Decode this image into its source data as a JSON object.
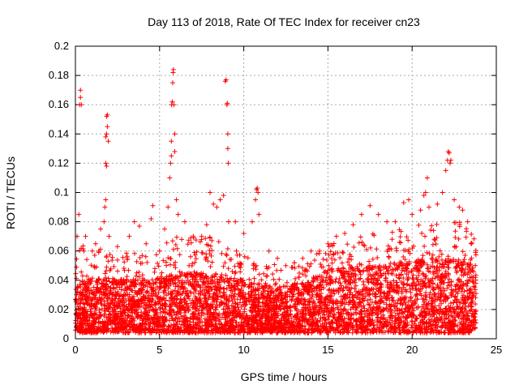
{
  "chart_data": {
    "type": "scatter",
    "title": "Day 113 of 2018, Rate Of TEC Index for receiver cn23",
    "xlabel": "GPS time / hours",
    "ylabel": "ROTI / TECUs",
    "xlim": [
      0,
      25
    ],
    "ylim": [
      0,
      0.2
    ],
    "xticks": [
      "0",
      "5",
      "10",
      "15",
      "20",
      "25"
    ],
    "yticks": [
      "0",
      "0.02",
      "0.04",
      "0.06",
      "0.08",
      "0.1",
      "0.12",
      "0.14",
      "0.16",
      "0.18",
      "0.2"
    ],
    "grid": true,
    "marker": "+",
    "color": "#ff0000",
    "series": [
      {
        "points": [
          [
            0.1,
            0.07
          ],
          [
            0.2,
            0.085
          ],
          [
            0.25,
            0.16
          ],
          [
            0.3,
            0.17
          ],
          [
            0.3,
            0.165
          ],
          [
            0.35,
            0.16
          ],
          [
            0.5,
            0.06
          ],
          [
            0.6,
            0.07
          ],
          [
            1.0,
            0.06
          ],
          [
            1.2,
            0.065
          ],
          [
            1.4,
            0.06
          ],
          [
            1.5,
            0.075
          ],
          [
            1.7,
            0.08
          ],
          [
            1.75,
            0.09
          ],
          [
            1.8,
            0.095
          ],
          [
            1.8,
            0.12
          ],
          [
            1.85,
            0.118
          ],
          [
            1.8,
            0.138
          ],
          [
            1.85,
            0.14
          ],
          [
            1.9,
            0.145
          ],
          [
            1.85,
            0.152
          ],
          [
            1.9,
            0.153
          ],
          [
            1.95,
            0.135
          ],
          [
            2.0,
            0.07
          ],
          [
            2.5,
            0.063
          ],
          [
            3.2,
            0.07
          ],
          [
            3.5,
            0.08
          ],
          [
            3.8,
            0.077
          ],
          [
            4.2,
            0.065
          ],
          [
            4.5,
            0.082
          ],
          [
            4.6,
            0.091
          ],
          [
            5.0,
            0.06
          ],
          [
            5.3,
            0.075
          ],
          [
            5.5,
            0.09
          ],
          [
            5.6,
            0.11
          ],
          [
            5.65,
            0.12
          ],
          [
            5.7,
            0.125
          ],
          [
            5.7,
            0.135
          ],
          [
            5.72,
            0.16
          ],
          [
            5.75,
            0.162
          ],
          [
            5.78,
            0.175
          ],
          [
            5.8,
            0.182
          ],
          [
            5.82,
            0.184
          ],
          [
            5.85,
            0.16
          ],
          [
            5.9,
            0.14
          ],
          [
            5.9,
            0.128
          ],
          [
            6.0,
            0.095
          ],
          [
            6.1,
            0.085
          ],
          [
            6.5,
            0.08
          ],
          [
            7.0,
            0.07
          ],
          [
            7.5,
            0.07
          ],
          [
            7.8,
            0.078
          ],
          [
            8.0,
            0.1
          ],
          [
            8.2,
            0.092
          ],
          [
            8.4,
            0.09
          ],
          [
            8.6,
            0.095
          ],
          [
            8.8,
            0.098
          ],
          [
            8.9,
            0.176
          ],
          [
            8.95,
            0.177
          ],
          [
            9.0,
            0.16
          ],
          [
            9.02,
            0.161
          ],
          [
            9.05,
            0.14
          ],
          [
            9.05,
            0.13
          ],
          [
            9.08,
            0.12
          ],
          [
            9.1,
            0.08
          ],
          [
            9.5,
            0.08
          ],
          [
            10.0,
            0.072
          ],
          [
            10.5,
            0.08
          ],
          [
            10.7,
            0.095
          ],
          [
            10.75,
            0.102
          ],
          [
            10.8,
            0.103
          ],
          [
            10.85,
            0.1
          ],
          [
            10.9,
            0.085
          ],
          [
            11.5,
            0.06
          ],
          [
            12.0,
            0.055
          ],
          [
            12.5,
            0.05
          ],
          [
            13.0,
            0.052
          ],
          [
            13.5,
            0.055
          ],
          [
            14.0,
            0.06
          ],
          [
            14.5,
            0.06
          ],
          [
            15.0,
            0.065
          ],
          [
            15.5,
            0.07
          ],
          [
            16.0,
            0.072
          ],
          [
            16.5,
            0.078
          ],
          [
            17.0,
            0.085
          ],
          [
            17.5,
            0.091
          ],
          [
            18.0,
            0.085
          ],
          [
            18.5,
            0.08
          ],
          [
            19.0,
            0.08
          ],
          [
            19.5,
            0.093
          ],
          [
            19.8,
            0.095
          ],
          [
            20.0,
            0.085
          ],
          [
            20.5,
            0.088
          ],
          [
            20.7,
            0.098
          ],
          [
            20.8,
            0.1
          ],
          [
            20.9,
            0.11
          ],
          [
            21.0,
            0.09
          ],
          [
            21.5,
            0.092
          ],
          [
            21.8,
            0.1
          ],
          [
            22.0,
            0.115
          ],
          [
            22.1,
            0.122
          ],
          [
            22.15,
            0.128
          ],
          [
            22.2,
            0.127
          ],
          [
            22.25,
            0.12
          ],
          [
            22.3,
            0.122
          ],
          [
            22.5,
            0.095
          ],
          [
            22.8,
            0.09
          ],
          [
            23.0,
            0.088
          ],
          [
            23.3,
            0.08
          ],
          [
            23.5,
            0.065
          ]
        ],
        "dense_band": {
          "x_start": 0,
          "x_end": 23.8,
          "y_min": 0.004,
          "y_profile": [
            [
              0,
              0.04
            ],
            [
              2,
              0.042
            ],
            [
              4,
              0.04
            ],
            [
              6,
              0.045
            ],
            [
              8,
              0.045
            ],
            [
              10,
              0.04
            ],
            [
              12,
              0.035
            ],
            [
              14,
              0.04
            ],
            [
              15,
              0.048
            ],
            [
              17,
              0.05
            ],
            [
              19,
              0.052
            ],
            [
              21,
              0.055
            ],
            [
              23,
              0.055
            ],
            [
              23.8,
              0.05
            ]
          ],
          "y_outlier_max": [
            [
              0,
              0.065
            ],
            [
              2,
              0.06
            ],
            [
              4,
              0.06
            ],
            [
              6,
              0.07
            ],
            [
              8,
              0.07
            ],
            [
              10,
              0.06
            ],
            [
              12,
              0.05
            ],
            [
              14,
              0.055
            ],
            [
              15,
              0.065
            ],
            [
              17,
              0.07
            ],
            [
              19,
              0.075
            ],
            [
              21,
              0.08
            ],
            [
              23,
              0.08
            ],
            [
              23.8,
              0.07
            ]
          ]
        }
      }
    ]
  }
}
